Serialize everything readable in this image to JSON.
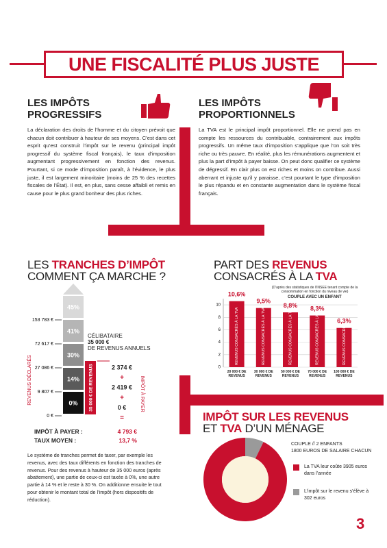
{
  "header": {
    "title": "UNE FISCALITÉ PLUS JUSTE"
  },
  "progressive": {
    "title": "LES IMPÔTS PROGRESSIFS",
    "text": "La déclaration des droits de l’homme et du citoyen prévoit que chacun doit contribuer à hauteur de ses moyens. C’est dans cet esprit qu’est construit l’impôt sur le revenu (principal impôt progressif du système fiscal français), le taux d’imposition augmentant progressivement en fonction des revenus. Pourtant, si ce mode d’imposition paraît, à l’évidence, le plus juste, il est largement minoritaire (moins de 25 % des recettes fiscales de l’État). Il est, en plus, sans cesse affaibli et remis en cause pour le plus grand bonheur des plus riches."
  },
  "proportional": {
    "title": "LES IMPÔTS PROPORTIONNELS",
    "text": "La TVA est le principal impôt proportionnel. Elle ne prend pas en compte les ressources du contribuable, contrairement aux impôts progressifs. Un même taux d’imposition s’applique que l’on soit très riche ou très pauvre. En réalité, plus les rémunérations augmentent et plus la part d’impôt à payer baisse. On peut donc qualifier ce système de dégressif. En clair plus on est riches et moins on contribue. Aussi aberrant et injuste qu’il y paraisse, c’est pourtant le type d’imposition le plus répandu et en constante augmentation dans le système fiscal français."
  },
  "tranches": {
    "title": [
      "LES ",
      "TRANCHES D’IMPÔT",
      "COMMENT ÇA MARCHE ?"
    ],
    "axis_label": "REVENUS DÉCLARÉS",
    "rates": [
      "45%",
      "41%",
      "30%",
      "14%",
      "0%"
    ],
    "thresholds": [
      "153 783 €",
      "72 617 €",
      "27 086 €",
      "9 807 €",
      "0 €"
    ],
    "profile": [
      "CÉLIBATAIRE",
      "35 000 €",
      "DE REVENUS ANNUELS"
    ],
    "bar_label": "35 000 € DE REVENUS",
    "tax_label": "IMPÔT À PAYER",
    "steps": [
      "2 374 €",
      "+",
      "2 419 €",
      "+",
      "0 €",
      "="
    ],
    "summary": [
      [
        "IMPÔT À PAYER :",
        "4 793 €"
      ],
      [
        "TAUX MOYEN :",
        "13,7 %"
      ]
    ],
    "text": "Le système de tranches permet de taxer, par exemple les revenus, avec des taux différents en fonction des tranches de revenus. Pour des revenus à hauteur de 35 000 euros (après abattement), une partie de ceux-ci est taxée à 0%, une autre partie à 14 % et le reste à 30 %. On additionne ensuite le tout pour obtenir le montant total de l’impôt (hors dispositifs de réduction)."
  },
  "page_number": "3",
  "chart_data": [
    {
      "type": "bar",
      "title": [
        "PART DES ",
        "REVENUS",
        "CONSACRÉS À LA ",
        "TVA"
      ],
      "note": "(D’après des statistiques de l’INSEE tenant compte de la consommation en fonction du niveau de vie)",
      "subtitle": "COUPLE AVEC UN ENFANT",
      "categories": [
        "20 000 € DE REVENUS",
        "30 000 € DE REVENUS",
        "50 000 € DE REVENUS",
        "70 000 € DE REVENUS",
        "100 000 € DE REVENUS"
      ],
      "values": [
        10.6,
        9.5,
        8.8,
        8.3,
        6.3
      ],
      "value_labels": [
        "10,6%",
        "9,5%",
        "8,8%",
        "8,3%",
        "6,3%"
      ],
      "bar_text": "REVENUS CONSACRÉS À LA TVA",
      "color": "#c8102e",
      "ylim": [
        0,
        11
      ],
      "yticks": [
        0,
        2,
        4,
        6,
        8,
        10
      ],
      "grid": true
    },
    {
      "type": "pie",
      "title": [
        "IMPÔT SUR LES REVENUS",
        "ET ",
        "TVA",
        " D’UN MÉNAGE"
      ],
      "subtitle": [
        "COUPLE // 2 ENFANTS",
        "1800 EUROS DE SALAIRE CHACUN"
      ],
      "categories": [
        "La TVA leur coûte 3905 euros dans l’année",
        "L’impôt sur le revenu s’élève à 302 euros"
      ],
      "values": [
        3905,
        302
      ],
      "colors": [
        "#c8102e",
        "#9a9a9a"
      ]
    }
  ]
}
